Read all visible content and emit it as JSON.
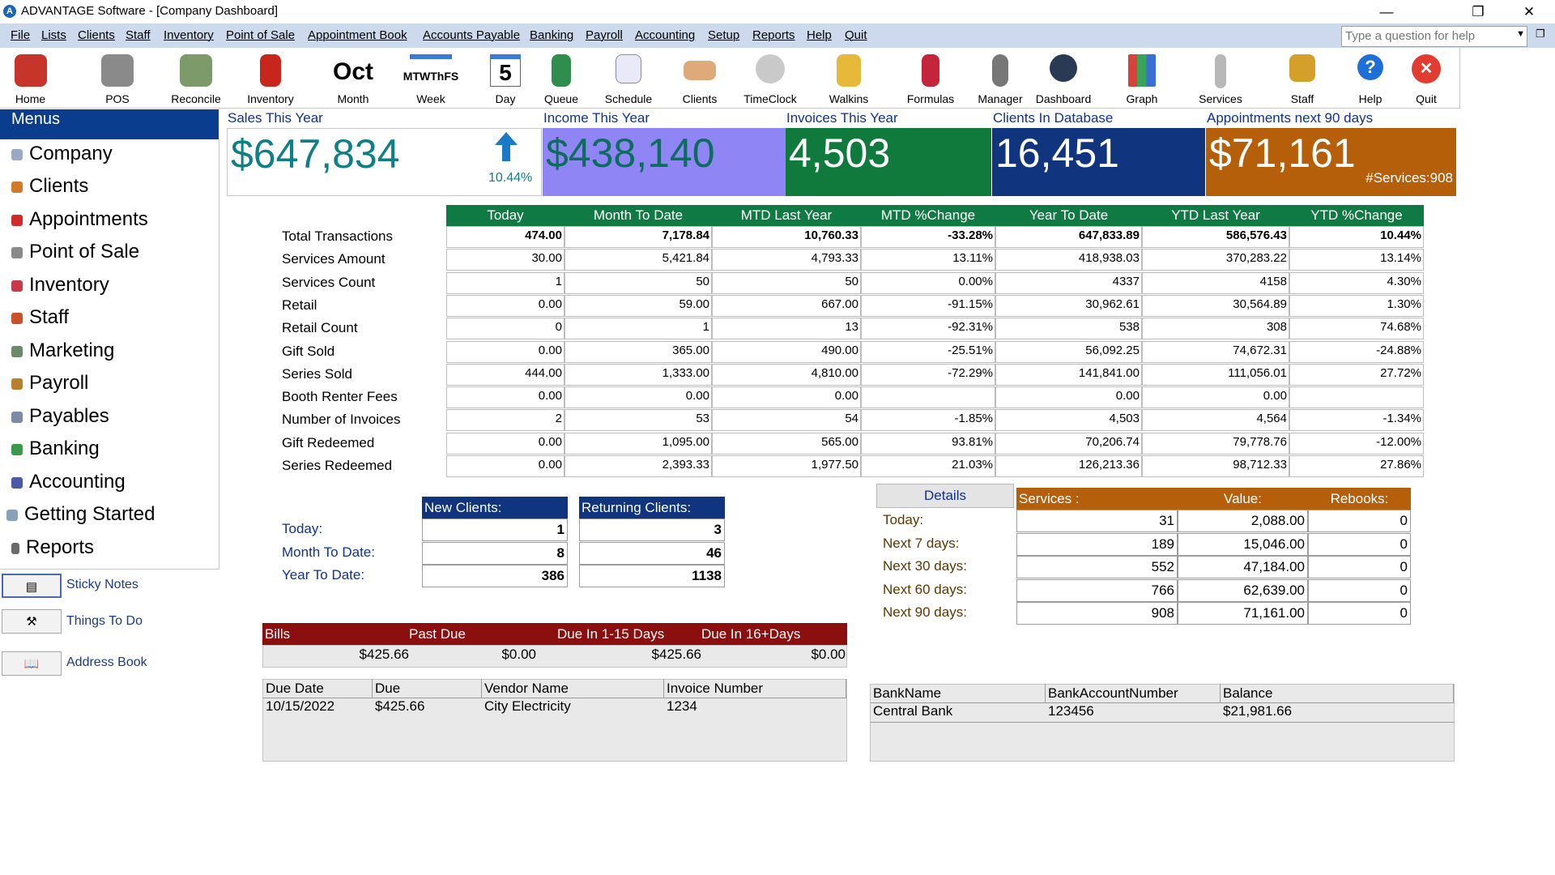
{
  "window": {
    "title": "ADVANTAGE Software - [Company Dashboard]",
    "app_icon": "A"
  },
  "menubar": {
    "items": [
      "File",
      "Lists",
      "Clients",
      "Staff",
      "Inventory",
      "Point of Sale",
      "Appointment Book",
      "Accounts Payable",
      "Banking",
      "Payroll",
      "Accounting",
      "Setup",
      "Reports",
      "Help",
      "Quit"
    ],
    "help_placeholder": "Type a question for help"
  },
  "toolbar": {
    "items": [
      {
        "label": "Home",
        "icon": "house-icon"
      },
      {
        "label": "POS",
        "icon": "cash-register-icon"
      },
      {
        "label": "Reconcile",
        "icon": "money-stack-icon"
      },
      {
        "label": "Inventory",
        "icon": "product-box-icon"
      },
      {
        "label": "Month",
        "icon": "month-calendar-icon",
        "glyph": "Oct"
      },
      {
        "label": "Week",
        "icon": "week-calendar-icon",
        "glyph": "MTWThFS"
      },
      {
        "label": "Day",
        "icon": "day-calendar-icon",
        "glyph": "5"
      },
      {
        "label": "Queue",
        "icon": "queue-icon"
      },
      {
        "label": "Schedule",
        "icon": "schedule-icon"
      },
      {
        "label": "Clients",
        "icon": "handshake-icon"
      },
      {
        "label": "TimeClock",
        "icon": "stopwatch-icon"
      },
      {
        "label": "Walkins",
        "icon": "walkin-person-icon"
      },
      {
        "label": "Formulas",
        "icon": "formula-bottles-icon"
      },
      {
        "label": "Manager",
        "icon": "manager-person-icon"
      },
      {
        "label": "Dashboard",
        "icon": "speedometer-icon"
      },
      {
        "label": "Graph",
        "icon": "bar-graph-icon"
      },
      {
        "label": "Services",
        "icon": "scissors-icon"
      },
      {
        "label": "Staff",
        "icon": "staff-people-icon"
      },
      {
        "label": "Help",
        "icon": "help-icon",
        "glyph": "?"
      },
      {
        "label": "Quit",
        "icon": "quit-icon",
        "glyph": "✕"
      }
    ]
  },
  "sidebar": {
    "header": "Menus",
    "items": [
      "Company",
      "Clients",
      "Appointments",
      "Point of Sale",
      "Inventory",
      "Staff",
      "Marketing",
      "Payroll",
      "Payables",
      "Banking",
      "Accounting",
      "Getting Started",
      "Reports"
    ],
    "links": [
      "Sticky Notes",
      "Things To Do",
      "Address Book"
    ]
  },
  "kpis": [
    {
      "label": "Sales This Year",
      "value": "$647,834",
      "note": "10.44%",
      "bg": "#ffffff",
      "fg": "#0f7f86"
    },
    {
      "label": "Income This Year",
      "value": "$438,140",
      "note": "",
      "bg": "#8f85f5",
      "fg": "#0b6e5c"
    },
    {
      "label": "Invoices This Year",
      "value": "4,503",
      "note": "",
      "bg": "#0f7a3c",
      "fg": "#ffffff"
    },
    {
      "label": "Clients In Database",
      "value": "16,451",
      "note": "",
      "bg": "#10357e",
      "fg": "#ffffff"
    },
    {
      "label": "Appointments next 90 days",
      "value": "$71,161",
      "note": "#Services:908",
      "bg": "#b55f0b",
      "fg": "#ffffff"
    }
  ],
  "stats": {
    "columns": [
      "Today",
      "Month To Date",
      "MTD Last Year",
      "MTD %Change",
      "Year To Date",
      "YTD Last Year",
      "YTD %Change"
    ],
    "rows": [
      {
        "label": "Total Transactions",
        "values": [
          "474.00",
          "7,178.84",
          "10,760.33",
          "-33.28%",
          "647,833.89",
          "586,576.43",
          "10.44%"
        ]
      },
      {
        "label": "Services Amount",
        "values": [
          "30.00",
          "5,421.84",
          "4,793.33",
          "13.11%",
          "418,938.03",
          "370,283.22",
          "13.14%"
        ]
      },
      {
        "label": "Services Count",
        "values": [
          "1",
          "50",
          "50",
          "0.00%",
          "4337",
          "4158",
          "4.30%"
        ]
      },
      {
        "label": "Retail",
        "values": [
          "0.00",
          "59.00",
          "667.00",
          "-91.15%",
          "30,962.61",
          "30,564.89",
          "1.30%"
        ]
      },
      {
        "label": "Retail Count",
        "values": [
          "0",
          "1",
          "13",
          "-92.31%",
          "538",
          "308",
          "74.68%"
        ]
      },
      {
        "label": "Gift Sold",
        "values": [
          "0.00",
          "365.00",
          "490.00",
          "-25.51%",
          "56,092.25",
          "74,672.31",
          "-24.88%"
        ]
      },
      {
        "label": "Series Sold",
        "values": [
          "444.00",
          "1,333.00",
          "4,810.00",
          "-72.29%",
          "141,841.00",
          "111,056.01",
          "27.72%"
        ]
      },
      {
        "label": "Booth Renter Fees",
        "values": [
          "0.00",
          "0.00",
          "0.00",
          "",
          "0.00",
          "0.00",
          ""
        ]
      },
      {
        "label": "Number of Invoices",
        "values": [
          "2",
          "53",
          "54",
          "-1.85%",
          "4,503",
          "4,564",
          "-1.34%"
        ]
      },
      {
        "label": "Gift  Redeemed",
        "values": [
          "0.00",
          "1,095.00",
          "565.00",
          "93.81%",
          "70,206.74",
          "79,778.76",
          "-12.00%"
        ]
      },
      {
        "label": "Series Redeemed",
        "values": [
          "0.00",
          "2,393.33",
          "1,977.50",
          "21.03%",
          "126,213.36",
          "98,712.33",
          "27.86%"
        ]
      }
    ]
  },
  "clients": {
    "headers": [
      "New Clients:",
      "Returning Clients:"
    ],
    "rows": [
      {
        "label": "Today:",
        "new": "1",
        "returning": "3"
      },
      {
        "label": "Month To Date:",
        "new": "8",
        "returning": "46"
      },
      {
        "label": "Year To Date:",
        "new": "386",
        "returning": "1138"
      }
    ]
  },
  "services": {
    "details_button": "Details",
    "headers": [
      "Services :",
      "Value:",
      "Rebooks:"
    ],
    "rows": [
      {
        "label": "Today:",
        "services": "31",
        "value": "2,088.00",
        "rebooks": "0"
      },
      {
        "label": "Next 7 days:",
        "services": "189",
        "value": "15,046.00",
        "rebooks": "0"
      },
      {
        "label": "Next 30 days:",
        "services": "552",
        "value": "47,184.00",
        "rebooks": "0"
      },
      {
        "label": "Next 60 days:",
        "services": "766",
        "value": "62,639.00",
        "rebooks": "0"
      },
      {
        "label": "Next 90 days:",
        "services": "908",
        "value": "71,161.00",
        "rebooks": "0"
      }
    ]
  },
  "bills": {
    "headers": [
      "Bills",
      "Past Due",
      "Due In 1-15 Days",
      "Due In 16+Days"
    ],
    "values": [
      "$425.66",
      "$0.00",
      "$425.66",
      "$0.00"
    ],
    "grid_headers": [
      "Due Date",
      "Due",
      "Vendor Name",
      "Invoice Number"
    ],
    "grid_rows": [
      [
        "10/15/2022",
        "$425.66",
        "City Electricity",
        "1234"
      ]
    ]
  },
  "bank": {
    "grid_headers": [
      "BankName",
      "BankAccountNumber",
      "Balance"
    ],
    "grid_rows": [
      [
        "Central Bank",
        "123456",
        "$21,981.66"
      ]
    ]
  }
}
